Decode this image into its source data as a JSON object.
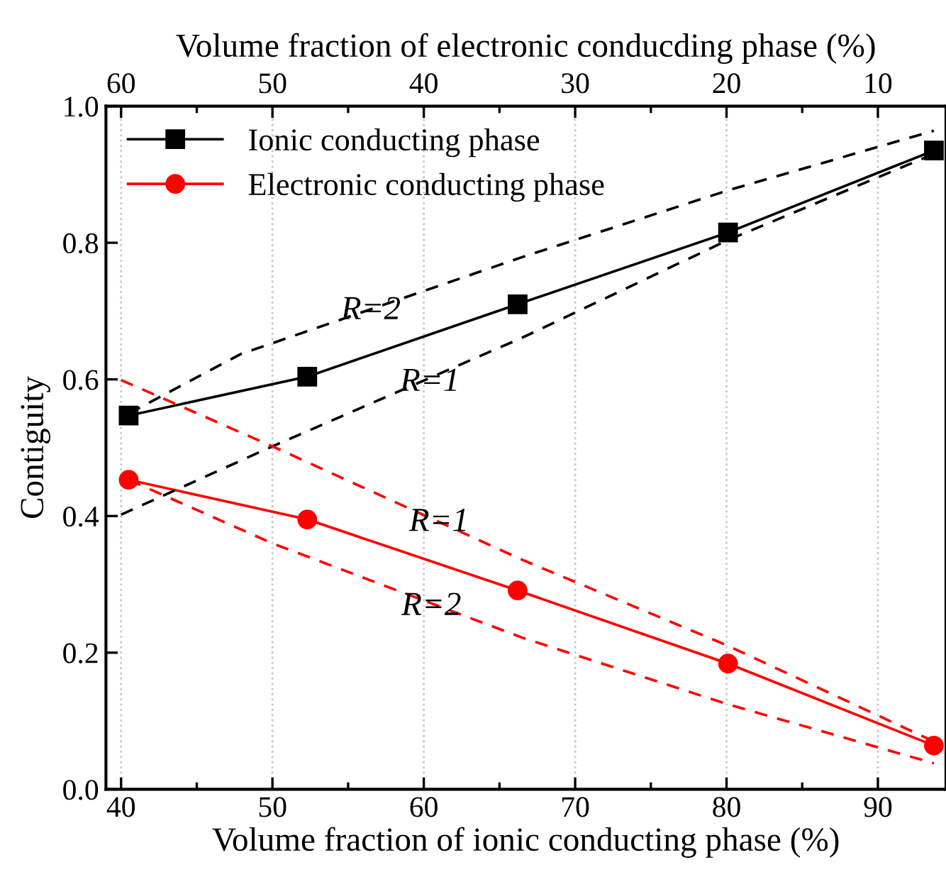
{
  "chart_data": {
    "type": "line",
    "xlabel": "Volume fraction of ionic conducting phase (%)",
    "x2label": "Volume fraction of electronic conducding phase (%)",
    "ylabel": "Contiguity",
    "xlim": [
      39,
      94.5
    ],
    "xticks": [
      40,
      50,
      60,
      70,
      80,
      90
    ],
    "x2lim": [
      61,
      5.5
    ],
    "x2ticks": [
      60,
      50,
      40,
      30,
      20,
      10
    ],
    "ylim": [
      0,
      1
    ],
    "yticks": [
      {
        "value": 0,
        "label": "0.0"
      },
      0.2,
      0.4,
      0.6,
      0.8,
      {
        "value": 1,
        "label": "1.0"
      }
    ],
    "grid": "x",
    "legend": "top left",
    "series": [
      {
        "name": "Ionic conducting phase",
        "color": "#000000",
        "marker": "square",
        "line_style": "solid",
        "x": [
          40.5,
          52.3,
          66.2,
          80.1,
          93.7
        ],
        "values": [
          0.547,
          0.604,
          0.71,
          0.815,
          0.935
        ]
      },
      {
        "name": "Electronic conducting phase",
        "color": "#ff0000",
        "marker": "circle",
        "line_style": "solid",
        "x": [
          40.5,
          52.3,
          66.2,
          80.1,
          93.7
        ],
        "values": [
          0.453,
          0.395,
          0.291,
          0.184,
          0.064
        ]
      },
      {
        "color": "#000000",
        "marker": "none",
        "line_style": "dashed",
        "x": [
          40.5,
          47.9,
          66.5,
          80,
          93.7
        ],
        "values": [
          0.55,
          0.637,
          0.779,
          0.876,
          0.964
        ]
      },
      {
        "color": "#000000",
        "marker": "none",
        "line_style": "dashed",
        "x": [
          40,
          50,
          66.5,
          80,
          93.7
        ],
        "values": [
          0.402,
          0.502,
          0.661,
          0.803,
          0.93
        ]
      },
      {
        "color": "#ff0000",
        "marker": "none",
        "line_style": "dashed",
        "x": [
          40,
          50,
          66.5,
          80,
          93.7
        ],
        "values": [
          0.599,
          0.502,
          0.336,
          0.211,
          0.07
        ]
      },
      {
        "color": "#ff0000",
        "marker": "none",
        "line_style": "dashed",
        "x": [
          40.5,
          50,
          66.5,
          80,
          93.7
        ],
        "values": [
          0.453,
          0.36,
          0.222,
          0.125,
          0.038
        ]
      }
    ],
    "annotations": [
      {
        "text": "R=2",
        "x": 56.5,
        "y": 0.7
      },
      {
        "text": "R=1",
        "x": 60.4,
        "y": 0.595
      },
      {
        "text": "R=1",
        "x": 61,
        "y": 0.39
      },
      {
        "text": "R=2",
        "x": 60.5,
        "y": 0.267
      }
    ]
  }
}
